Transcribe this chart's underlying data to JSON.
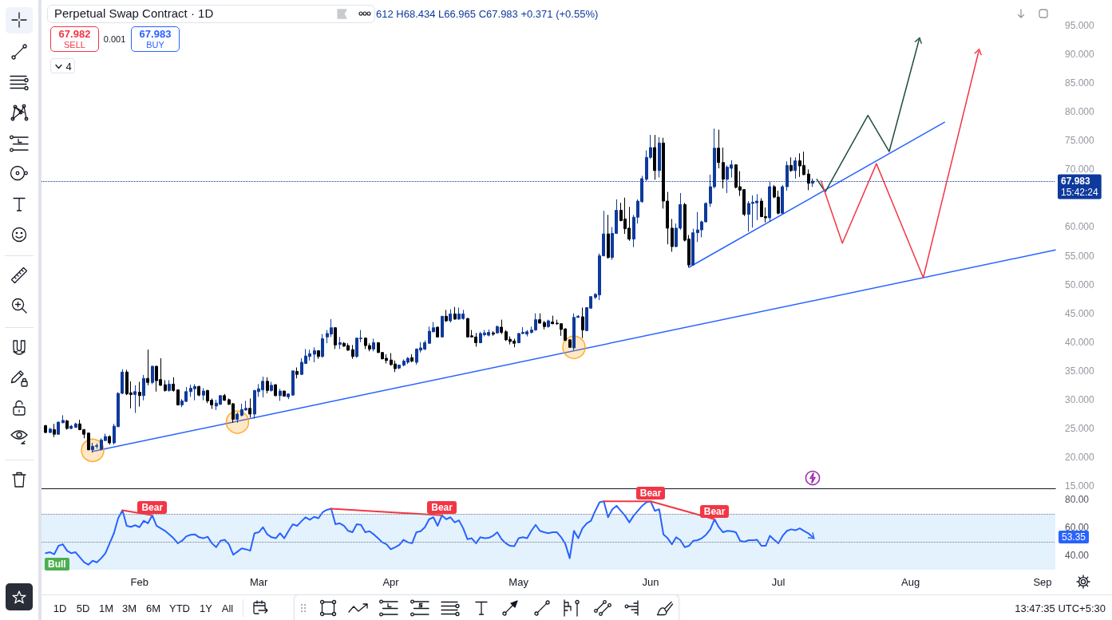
{
  "chart_data": [
    {
      "type": "candlestick",
      "title": "Perpetual Swap Contract · 1D",
      "x": [
        "--01-10",
        "--01-11",
        "--01-12",
        "--01-13",
        "--01-14",
        "--01-15",
        "--01-16",
        "--01-17",
        "--01-18",
        "--01-19",
        "--01-20",
        "--01-21",
        "--01-22",
        "--01-23",
        "--01-24",
        "--01-25",
        "--01-26",
        "--01-27",
        "--01-28",
        "--01-29",
        "--01-30",
        "--01-31",
        "--02-01",
        "--02-02",
        "--02-03",
        "--02-04",
        "--02-05",
        "--02-06",
        "--02-07",
        "--02-08",
        "--02-09",
        "--02-10",
        "--02-11",
        "--02-12",
        "--02-13",
        "--02-14",
        "--02-15",
        "--02-16",
        "--02-17",
        "--02-18",
        "--02-19",
        "--02-20",
        "--02-21",
        "--02-22",
        "--02-23",
        "--02-24",
        "--02-25",
        "--02-26",
        "--02-27",
        "--02-28",
        "--03-01",
        "--03-02",
        "--03-03",
        "--03-04",
        "--03-05",
        "--03-06",
        "--03-07",
        "--03-08",
        "--03-09",
        "--03-10",
        "--03-11",
        "--03-12",
        "--03-13",
        "--03-14",
        "--03-15",
        "--03-16",
        "--03-17",
        "--03-18",
        "--03-19",
        "--03-20",
        "--03-21",
        "--03-22",
        "--03-23",
        "--03-24",
        "--03-25",
        "--03-26",
        "--03-27",
        "--03-28",
        "--03-29",
        "--03-30",
        "--03-31",
        "--04-01",
        "--04-02",
        "--04-03",
        "--04-04",
        "--04-05",
        "--04-06",
        "--04-07",
        "--04-08",
        "--04-09",
        "--04-10",
        "--04-11",
        "--04-12",
        "--04-13",
        "--04-14",
        "--04-15",
        "--04-16",
        "--04-17",
        "--04-18",
        "--04-19",
        "--04-20",
        "--04-21",
        "--04-22",
        "--04-23",
        "--04-24",
        "--04-25",
        "--04-26",
        "--04-27",
        "--04-28",
        "--04-29",
        "--04-30",
        "--05-01",
        "--05-02",
        "--05-03",
        "--05-04",
        "--05-05",
        "--05-06",
        "--05-07",
        "--05-08",
        "--05-09",
        "--05-10",
        "--05-11",
        "--05-12",
        "--05-13",
        "--05-14",
        "--05-15",
        "--05-16",
        "--05-17",
        "--05-18",
        "--05-19",
        "--05-20",
        "--05-21",
        "--05-22",
        "--05-23",
        "--05-24",
        "--05-25",
        "--05-26",
        "--05-27",
        "--05-28",
        "--05-29",
        "--05-30",
        "--05-31",
        "--06-01",
        "--06-02",
        "--06-03",
        "--06-04",
        "--06-05",
        "--06-06",
        "--06-07",
        "--06-08",
        "--06-09",
        "--06-10",
        "--06-11",
        "--06-12",
        "--06-13",
        "--06-14",
        "--06-15",
        "--06-16",
        "--06-17",
        "--06-18",
        "--06-19",
        "--06-20",
        "--06-21",
        "--06-22",
        "--06-23",
        "--06-24",
        "--06-25",
        "--06-26",
        "--06-27",
        "--06-28",
        "--06-29",
        "--06-30",
        "--07-01",
        "--07-02",
        "--07-03",
        "--07-04",
        "--07-05",
        "--07-06",
        "--07-07",
        "--07-08",
        "--07-09"
      ],
      "ohlc": [
        [
          25.5,
          25.6,
          24.2,
          24.3
        ],
        [
          24.3,
          25.1,
          24.2,
          24.9
        ],
        [
          24.8,
          25.8,
          23.5,
          24.0
        ],
        [
          24.0,
          26.2,
          23.9,
          26.1
        ],
        [
          26.0,
          27.3,
          25.9,
          26.4
        ],
        [
          26.3,
          26.5,
          24.8,
          25.0
        ],
        [
          25.0,
          25.6,
          24.9,
          25.4
        ],
        [
          25.2,
          26.0,
          25.1,
          25.8
        ],
        [
          25.8,
          26.5,
          24.7,
          24.8
        ],
        [
          24.8,
          24.9,
          23.3,
          24.0
        ],
        [
          24.2,
          24.3,
          21.2,
          21.3
        ],
        [
          21.3,
          22.5,
          20.8,
          21.9
        ],
        [
          21.9,
          22.4,
          21.5,
          22.0
        ],
        [
          21.4,
          23.3,
          21.2,
          23.0
        ],
        [
          22.9,
          24.1,
          22.8,
          23.6
        ],
        [
          23.6,
          23.8,
          22.2,
          22.5
        ],
        [
          22.5,
          25.8,
          22.2,
          25.4
        ],
        [
          25.3,
          31.3,
          25.3,
          31.1
        ],
        [
          31.1,
          35.3,
          31.0,
          34.8
        ],
        [
          34.8,
          35.2,
          30.8,
          31.0
        ],
        [
          31.2,
          33.2,
          28.5,
          30.9
        ],
        [
          30.9,
          32.5,
          27.7,
          31.4
        ],
        [
          31.3,
          33.1,
          28.8,
          30.7
        ],
        [
          30.7,
          34.3,
          29.9,
          33.7
        ],
        [
          33.7,
          38.7,
          32.5,
          33.0
        ],
        [
          33.0,
          35.9,
          32.7,
          35.8
        ],
        [
          35.8,
          35.9,
          31.4,
          33.3
        ],
        [
          33.5,
          37.2,
          32.4,
          32.5
        ],
        [
          32.6,
          33.4,
          31.4,
          31.6
        ],
        [
          31.6,
          33.4,
          31.4,
          32.7
        ],
        [
          32.7,
          33.9,
          31.4,
          31.6
        ],
        [
          31.7,
          31.8,
          29.0,
          29.1
        ],
        [
          29.1,
          30.1,
          28.7,
          29.8
        ],
        [
          29.7,
          32.2,
          29.6,
          31.4
        ],
        [
          31.4,
          32.6,
          30.5,
          32.0
        ],
        [
          31.9,
          32.7,
          29.9,
          32.3
        ],
        [
          32.3,
          32.4,
          30.6,
          30.8
        ],
        [
          30.8,
          32.0,
          29.9,
          31.5
        ],
        [
          31.6,
          31.7,
          29.4,
          29.8
        ],
        [
          29.9,
          30.2,
          28.4,
          29.1
        ],
        [
          28.9,
          30.0,
          28.2,
          29.4
        ],
        [
          29.2,
          30.8,
          29.1,
          30.7
        ],
        [
          30.7,
          31.0,
          29.8,
          29.9
        ],
        [
          30.0,
          30.2,
          29.1,
          29.2
        ],
        [
          29.3,
          29.4,
          26.0,
          26.6
        ],
        [
          26.6,
          27.8,
          26.0,
          27.5
        ],
        [
          27.3,
          29.3,
          27.1,
          28.3
        ],
        [
          28.2,
          29.8,
          28.1,
          28.5
        ],
        [
          28.5,
          30.2,
          26.9,
          27.5
        ],
        [
          27.5,
          31.7,
          26.7,
          31.6
        ],
        [
          31.4,
          32.7,
          30.5,
          31.9
        ],
        [
          31.7,
          34.0,
          30.4,
          33.2
        ],
        [
          33.2,
          33.9,
          31.1,
          31.6
        ],
        [
          31.6,
          33.1,
          31.4,
          32.5
        ],
        [
          32.6,
          32.7,
          30.6,
          30.7
        ],
        [
          30.7,
          31.9,
          29.8,
          31.5
        ],
        [
          31.5,
          31.6,
          30.6,
          30.6
        ],
        [
          30.5,
          31.1,
          30.1,
          31.0
        ],
        [
          30.8,
          35.0,
          30.7,
          35.0
        ],
        [
          34.9,
          35.6,
          33.7,
          34.4
        ],
        [
          34.4,
          37.2,
          34.3,
          36.5
        ],
        [
          36.3,
          38.8,
          36.2,
          37.6
        ],
        [
          37.5,
          38.7,
          36.8,
          38.0
        ],
        [
          37.9,
          39.1,
          36.5,
          38.5
        ],
        [
          38.5,
          38.6,
          37.1,
          37.5
        ],
        [
          37.5,
          41.4,
          37.3,
          40.6
        ],
        [
          40.9,
          42.1,
          39.8,
          41.5
        ],
        [
          41.4,
          44.0,
          40.9,
          42.5
        ],
        [
          42.5,
          42.6,
          38.8,
          39.5
        ],
        [
          39.6,
          40.9,
          38.8,
          39.9
        ],
        [
          39.8,
          40.0,
          39.2,
          39.3
        ],
        [
          39.4,
          39.8,
          38.5,
          38.6
        ],
        [
          38.7,
          39.5,
          37.1,
          37.5
        ],
        [
          37.5,
          40.7,
          37.3,
          40.7
        ],
        [
          40.6,
          42.1,
          40.0,
          40.7
        ],
        [
          40.7,
          40.8,
          38.8,
          39.4
        ],
        [
          39.4,
          39.8,
          38.4,
          38.8
        ],
        [
          38.8,
          40.6,
          38.4,
          39.9
        ],
        [
          39.9,
          40.0,
          38.1,
          38.2
        ],
        [
          38.2,
          38.3,
          37.0,
          37.1
        ],
        [
          37.2,
          37.9,
          36.3,
          36.8
        ],
        [
          36.9,
          38.1,
          35.9,
          36.1
        ],
        [
          36.2,
          36.8,
          34.8,
          35.4
        ],
        [
          35.5,
          36.1,
          35.3,
          36.0
        ],
        [
          36.0,
          37.0,
          35.8,
          36.7
        ],
        [
          36.5,
          37.4,
          36.2,
          37.2
        ],
        [
          37.3,
          37.9,
          36.5,
          36.7
        ],
        [
          36.5,
          38.9,
          36.1,
          38.8
        ],
        [
          38.6,
          40.0,
          38.2,
          39.0
        ],
        [
          38.8,
          40.3,
          38.6,
          39.9
        ],
        [
          39.8,
          42.7,
          39.7,
          41.9
        ],
        [
          41.8,
          43.5,
          41.7,
          42.5
        ],
        [
          42.6,
          42.7,
          40.8,
          40.9
        ],
        [
          40.9,
          44.5,
          40.8,
          44.5
        ],
        [
          44.5,
          45.6,
          43.5,
          43.7
        ],
        [
          43.7,
          45.7,
          43.4,
          44.9
        ],
        [
          44.9,
          46.1,
          43.9,
          44.0
        ],
        [
          44.0,
          46.0,
          43.9,
          44.9
        ],
        [
          44.1,
          45.6,
          43.9,
          44.9
        ],
        [
          44.1,
          44.2,
          40.8,
          40.9
        ],
        [
          41.1,
          42.1,
          40.8,
          40.9
        ],
        [
          40.9,
          41.6,
          39.2,
          39.9
        ],
        [
          39.9,
          41.8,
          39.8,
          41.5
        ],
        [
          41.3,
          42.1,
          41.0,
          41.6
        ],
        [
          41.2,
          42.2,
          41.0,
          41.7
        ],
        [
          41.6,
          41.9,
          41.1,
          41.4
        ],
        [
          41.6,
          42.9,
          41.5,
          42.7
        ],
        [
          42.6,
          43.9,
          41.4,
          41.7
        ],
        [
          41.8,
          42.1,
          40.2,
          40.4
        ],
        [
          40.5,
          41.0,
          39.6,
          40.1
        ],
        [
          40.2,
          40.6,
          39.1,
          39.8
        ],
        [
          39.9,
          41.6,
          39.8,
          41.5
        ],
        [
          41.5,
          42.6,
          41.4,
          41.7
        ],
        [
          41.4,
          42.1,
          41.0,
          41.8
        ],
        [
          41.7,
          42.7,
          41.5,
          42.1
        ],
        [
          42.1,
          45.0,
          42.0,
          43.9
        ],
        [
          43.9,
          45.0,
          43.2,
          43.3
        ],
        [
          43.4,
          43.7,
          42.2,
          42.7
        ],
        [
          42.7,
          43.9,
          42.5,
          43.7
        ],
        [
          43.5,
          44.6,
          43.1,
          43.2
        ],
        [
          43.3,
          43.9,
          43.0,
          43.2
        ],
        [
          43.2,
          43.3,
          41.1,
          42.2
        ],
        [
          42.3,
          42.4,
          40.2,
          40.3
        ],
        [
          40.4,
          40.5,
          39.0,
          39.1
        ],
        [
          39.0,
          45.0,
          38.6,
          44.3
        ],
        [
          44.3,
          44.7,
          44.2,
          44.5
        ],
        [
          44.4,
          46.0,
          40.7,
          42.1
        ],
        [
          42.0,
          46.0,
          41.9,
          46.0
        ],
        [
          45.9,
          48.0,
          45.8,
          47.9
        ],
        [
          47.8,
          48.5,
          47.5,
          48.3
        ],
        [
          48.2,
          55.4,
          47.3,
          55.0
        ],
        [
          55.0,
          62.8,
          54.9,
          58.8
        ],
        [
          58.8,
          62.1,
          54.5,
          54.7
        ],
        [
          54.7,
          60.0,
          54.3,
          58.9
        ],
        [
          58.9,
          64.8,
          58.8,
          62.9
        ],
        [
          62.9,
          64.2,
          61.0,
          61.1
        ],
        [
          61.4,
          65.1,
          58.8,
          59.7
        ],
        [
          59.8,
          63.5,
          57.6,
          57.9
        ],
        [
          57.9,
          62.1,
          56.5,
          61.7
        ],
        [
          61.7,
          64.8,
          60.6,
          64.5
        ],
        [
          64.4,
          68.9,
          64.2,
          68.4
        ],
        [
          68.3,
          73.3,
          68.0,
          72.1
        ],
        [
          72.1,
          76.0,
          71.8,
          73.8
        ],
        [
          73.8,
          76.0,
          68.2,
          69.8
        ],
        [
          69.8,
          75.6,
          68.6,
          74.6
        ],
        [
          74.6,
          75.5,
          63.2,
          64.5
        ],
        [
          64.5,
          66.1,
          57.0,
          59.8
        ],
        [
          59.8,
          61.4,
          55.7,
          56.6
        ],
        [
          56.6,
          60.6,
          56.5,
          59.8
        ],
        [
          59.8,
          65.9,
          59.5,
          63.9
        ],
        [
          63.9,
          64.2,
          57.5,
          57.7
        ],
        [
          57.9,
          58.6,
          53.0,
          53.4
        ],
        [
          53.4,
          59.7,
          53.3,
          59.0
        ],
        [
          59.0,
          62.6,
          57.4,
          59.5
        ],
        [
          59.5,
          61.1,
          58.2,
          60.9
        ],
        [
          60.9,
          64.3,
          60.8,
          64.1
        ],
        [
          64.1,
          69.1,
          63.5,
          67.0
        ],
        [
          67.0,
          77.1,
          66.7,
          73.7
        ],
        [
          73.7,
          76.9,
          70.2,
          71.2
        ],
        [
          71.2,
          73.8,
          66.7,
          68.3
        ],
        [
          68.3,
          70.7,
          65.9,
          70.4
        ],
        [
          70.2,
          71.6,
          68.6,
          70.8
        ],
        [
          70.8,
          70.9,
          66.7,
          66.9
        ],
        [
          67.0,
          69.7,
          65.4,
          66.4
        ],
        [
          66.5,
          66.6,
          61.9,
          62.2
        ],
        [
          62.2,
          64.5,
          59.2,
          64.1
        ],
        [
          64.1,
          65.5,
          59.9,
          64.3
        ],
        [
          64.2,
          65.7,
          61.2,
          64.5
        ],
        [
          64.5,
          65.0,
          61.7,
          61.8
        ],
        [
          61.8,
          63.4,
          60.8,
          61.6
        ],
        [
          61.6,
          68.0,
          60.9,
          67.0
        ],
        [
          67.0,
          67.3,
          65.0,
          65.2
        ],
        [
          65.2,
          66.3,
          62.2,
          62.4
        ],
        [
          62.4,
          67.3,
          62.3,
          67.0
        ],
        [
          67.0,
          71.4,
          66.3,
          70.7
        ],
        [
          70.7,
          72.1,
          69.6,
          69.8
        ],
        [
          69.8,
          72.1,
          68.4,
          71.5
        ],
        [
          71.5,
          72.8,
          68.7,
          70.6
        ],
        [
          70.7,
          73.1,
          69.0,
          69.1
        ],
        [
          69.2,
          70.0,
          66.4,
          67.6
        ],
        [
          67.612,
          68.434,
          66.965,
          67.983
        ]
      ],
      "colors": [
        "#000000",
        "#0e3a9c",
        "#000000",
        "#0e3a9c",
        "#0e3a9c",
        "#000000",
        "#0e3a9c",
        "#0e3a9c",
        "#000000",
        "#000000",
        "#000000",
        "#0e3a9c",
        "#0e3a9c",
        "#0e3a9c",
        "#0e3a9c",
        "#000000",
        "#0e3a9c",
        "#0e3a9c",
        "#0e3a9c",
        "#000000",
        "#000000",
        "#0e3a9c",
        "#000000",
        "#0e3a9c",
        "#000000",
        "#0e3a9c",
        "#000000",
        "#000000",
        "#000000",
        "#0e3a9c",
        "#000000",
        "#000000",
        "#0e3a9c",
        "#0e3a9c",
        "#0e3a9c",
        "#0e3a9c",
        "#000000",
        "#0e3a9c",
        "#000000",
        "#000000",
        "#0e3a9c",
        "#0e3a9c",
        "#000000",
        "#000000",
        "#000000",
        "#0e3a9c",
        "#0e3a9c",
        "#0e3a9c",
        "#000000",
        "#0e3a9c",
        "#0e3a9c",
        "#0e3a9c",
        "#000000",
        "#0e3a9c",
        "#000000",
        "#0e3a9c",
        "#000000",
        "#0e3a9c",
        "#0e3a9c",
        "#000000",
        "#0e3a9c",
        "#0e3a9c",
        "#0e3a9c",
        "#0e3a9c",
        "#000000",
        "#0e3a9c",
        "#0e3a9c",
        "#0e3a9c",
        "#000000",
        "#0e3a9c",
        "#000000",
        "#000000",
        "#000000",
        "#0e3a9c",
        "#0e3a9c",
        "#000000",
        "#000000",
        "#0e3a9c",
        "#000000",
        "#000000",
        "#000000",
        "#000000",
        "#000000",
        "#0e3a9c",
        "#0e3a9c",
        "#0e3a9c",
        "#000000",
        "#0e3a9c",
        "#0e3a9c",
        "#0e3a9c",
        "#0e3a9c",
        "#0e3a9c",
        "#000000",
        "#0e3a9c",
        "#000000",
        "#0e3a9c",
        "#000000",
        "#0e3a9c",
        "#0e3a9c",
        "#000000",
        "#000000",
        "#000000",
        "#0e3a9c",
        "#0e3a9c",
        "#0e3a9c",
        "#000000",
        "#0e3a9c",
        "#000000",
        "#000000",
        "#000000",
        "#000000",
        "#0e3a9c",
        "#0e3a9c",
        "#0e3a9c",
        "#0e3a9c",
        "#0e3a9c",
        "#000000",
        "#000000",
        "#0e3a9c",
        "#000000",
        "#000000",
        "#000000",
        "#000000",
        "#000000",
        "#0e3a9c",
        "#0e3a9c",
        "#000000",
        "#0e3a9c",
        "#0e3a9c",
        "#0e3a9c",
        "#0e3a9c",
        "#0e3a9c",
        "#000000",
        "#0e3a9c",
        "#0e3a9c",
        "#000000",
        "#000000",
        "#000000",
        "#0e3a9c",
        "#0e3a9c",
        "#0e3a9c",
        "#0e3a9c",
        "#0e3a9c",
        "#000000",
        "#0e3a9c",
        "#000000",
        "#000000",
        "#000000",
        "#0e3a9c",
        "#0e3a9c",
        "#000000",
        "#000000",
        "#0e3a9c",
        "#0e3a9c",
        "#0e3a9c",
        "#0e3a9c",
        "#0e3a9c",
        "#0e3a9c",
        "#000000",
        "#000000",
        "#0e3a9c",
        "#0e3a9c",
        "#000000",
        "#000000",
        "#000000",
        "#0e3a9c",
        "#0e3a9c",
        "#0e3a9c",
        "#000000",
        "#000000",
        "#0e3a9c",
        "#000000",
        "#000000",
        "#0e3a9c",
        "#0e3a9c",
        "#000000",
        "#0e3a9c",
        "#000000",
        "#000000",
        "#000000",
        "#0e3a9c"
      ],
      "series": [
        {
          "type": "line",
          "color": "#2962ff",
          "x": [
            "--01-21",
            "--09-04"
          ],
          "values": [
            21.0,
            56.0
          ]
        },
        {
          "type": "line",
          "color": "#2962ff",
          "x": [
            "--06-10",
            "--08-09"
          ],
          "values": [
            53.0,
            78.2
          ]
        },
        {
          "type": "line",
          "color": "#1f4e3d",
          "x": [
            "--07-10",
            "--07-12",
            "--07-22",
            "--07-27",
            "--08-03"
          ],
          "values": [
            68.3,
            66.1,
            79.4,
            73.1,
            92.5
          ]
        },
        {
          "type": "line",
          "color": "#f23645",
          "x": [
            "--07-11",
            "--07-16",
            "--07-24",
            "--08-04",
            "--08-17"
          ],
          "values": [
            68.0,
            57.2,
            71.0,
            51.2,
            90.5
          ]
        },
        {
          "type": "scatter",
          "color": "#ff9800",
          "marker": "circle",
          "x": [
            "--01-21",
            "--02-24",
            "--05-14"
          ],
          "values": [
            21.2,
            26.1,
            39.1
          ]
        }
      ],
      "xlim": [
        "--01-09",
        "--09-04"
      ],
      "ylim": [
        14.6,
        95
      ],
      "yticks": [
        {
          "value": 15,
          "label": "15.000"
        },
        {
          "value": 20,
          "label": "20.000"
        },
        {
          "value": 25,
          "label": "25.000"
        },
        {
          "value": 30,
          "label": "30.000"
        },
        {
          "value": 35,
          "label": "35.000"
        },
        {
          "value": 40,
          "label": "40.000"
        },
        {
          "value": 45,
          "label": "45.000"
        },
        {
          "value": 50,
          "label": "50.000"
        },
        {
          "value": 55,
          "label": "55.000"
        },
        {
          "value": 60,
          "label": "60.000"
        },
        {
          "value": 70,
          "label": "70.000"
        },
        {
          "value": 75,
          "label": "75.000"
        },
        {
          "value": 80,
          "label": "80.000"
        },
        {
          "value": 85,
          "label": "85.000"
        },
        {
          "value": 90,
          "label": "90.000"
        },
        {
          "value": 95,
          "label": "95.000"
        }
      ],
      "tick_labels": "y",
      "grid": false,
      "marker": "none",
      "ref_lines": [
        {
          "axis": "y",
          "value": 67.983,
          "label": "67.983",
          "color": "#0e3a9c",
          "line_style": "dotted"
        }
      ],
      "annotations": [
        "612 H68.434 L66.965 C67.983 +0.371 (+0.55%)",
        "67.982",
        "SELL",
        "0.001",
        "67.983",
        "BUY",
        "4",
        "15:42:24"
      ]
    },
    {
      "type": "line",
      "x": [
        "--01-10",
        "--01-11",
        "--01-12",
        "--01-13",
        "--01-14",
        "--01-15",
        "--01-16",
        "--01-17",
        "--01-18",
        "--01-19",
        "--01-20",
        "--01-21",
        "--01-22",
        "--01-23",
        "--01-24",
        "--01-25",
        "--01-26",
        "--01-27",
        "--01-28",
        "--01-29",
        "--01-30",
        "--01-31",
        "--02-01",
        "--02-02",
        "--02-03",
        "--02-04",
        "--02-05",
        "--02-06",
        "--02-07",
        "--02-08",
        "--02-09",
        "--02-10",
        "--02-11",
        "--02-12",
        "--02-13",
        "--02-14",
        "--02-15",
        "--02-16",
        "--02-17",
        "--02-18",
        "--02-19",
        "--02-20",
        "--02-21",
        "--02-22",
        "--02-23",
        "--02-24",
        "--02-25",
        "--02-26",
        "--02-27",
        "--02-28",
        "--03-01",
        "--03-02",
        "--03-03",
        "--03-04",
        "--03-05",
        "--03-06",
        "--03-07",
        "--03-08",
        "--03-09",
        "--03-10",
        "--03-11",
        "--03-12",
        "--03-13",
        "--03-14",
        "--03-15",
        "--03-16",
        "--03-17",
        "--03-18",
        "--03-19",
        "--03-20",
        "--03-21",
        "--03-22",
        "--03-23",
        "--03-24",
        "--03-25",
        "--03-26",
        "--03-27",
        "--03-28",
        "--03-29",
        "--03-30",
        "--03-31",
        "--04-01",
        "--04-02",
        "--04-03",
        "--04-04",
        "--04-05",
        "--04-06",
        "--04-07",
        "--04-08",
        "--04-09",
        "--04-10",
        "--04-11",
        "--04-12",
        "--04-13",
        "--04-14",
        "--04-15",
        "--04-16",
        "--04-17",
        "--04-18",
        "--04-19",
        "--04-20",
        "--04-21",
        "--04-22",
        "--04-23",
        "--04-24",
        "--04-25",
        "--04-26",
        "--04-27",
        "--04-28",
        "--04-29",
        "--04-30",
        "--05-01",
        "--05-02",
        "--05-03",
        "--05-04",
        "--05-05",
        "--05-06",
        "--05-07",
        "--05-08",
        "--05-09",
        "--05-10",
        "--05-11",
        "--05-12",
        "--05-13",
        "--05-14",
        "--05-15",
        "--05-16",
        "--05-17",
        "--05-18",
        "--05-19",
        "--05-20",
        "--05-21",
        "--05-22",
        "--05-23",
        "--05-24",
        "--05-25",
        "--05-26",
        "--05-27",
        "--05-28",
        "--05-29",
        "--05-30",
        "--05-31",
        "--06-01",
        "--06-02",
        "--06-03",
        "--06-04",
        "--06-05",
        "--06-06",
        "--06-07",
        "--06-08",
        "--06-09",
        "--06-10",
        "--06-11",
        "--06-12",
        "--06-13",
        "--06-14",
        "--06-15",
        "--06-16",
        "--06-17",
        "--06-18",
        "--06-19",
        "--06-20",
        "--06-21",
        "--06-22",
        "--06-23",
        "--06-24",
        "--06-25",
        "--06-26",
        "--06-27",
        "--06-28",
        "--06-29",
        "--06-30",
        "--07-01",
        "--07-02",
        "--07-03",
        "--07-04",
        "--07-05",
        "--07-06",
        "--07-07",
        "--07-08",
        "--07-09"
      ],
      "series": [
        {
          "color": "#2962ff",
          "values": [
            41.8,
            42.5,
            41.1,
            47.1,
            48.2,
            43.6,
            41.8,
            42.5,
            38.9,
            35.3,
            33.6,
            36.4,
            35.3,
            38.2,
            41.8,
            48.9,
            56.1,
            66.8,
            72.5,
            61.4,
            60.7,
            61.8,
            60.4,
            65.0,
            63.2,
            68.9,
            61.4,
            59.6,
            57.8,
            55.3,
            52.5,
            48.9,
            50.7,
            53.9,
            55.0,
            55.3,
            53.2,
            52.5,
            53.6,
            48.9,
            46.1,
            50.7,
            51.4,
            48.2,
            40.7,
            42.9,
            45.3,
            44.6,
            43.6,
            56.1,
            56.8,
            60.4,
            55.3,
            53.2,
            52.5,
            56.1,
            52.5,
            57.8,
            62.5,
            61.4,
            64.6,
            67.5,
            65.7,
            67.8,
            66.8,
            71.1,
            72.8,
            73.6,
            62.5,
            63.2,
            61.4,
            57.8,
            56.8,
            62.5,
            62.1,
            56.8,
            57.5,
            55.3,
            52.5,
            49.6,
            48.2,
            44.6,
            46.1,
            47.8,
            51.4,
            49.6,
            48.9,
            56.8,
            57.5,
            60.4,
            66.1,
            67.5,
            61.4,
            68.9,
            66.1,
            67.5,
            63.9,
            65.3,
            59.6,
            51.8,
            52.5,
            48.9,
            53.2,
            52.5,
            52.8,
            54.3,
            56.8,
            51.8,
            48.9,
            47.1,
            46.8,
            52.5,
            53.2,
            52.5,
            57.8,
            62.1,
            57.8,
            56.8,
            56.1,
            56.8,
            56.8,
            53.2,
            48.2,
            38.2,
            57.8,
            52.5,
            59.6,
            63.2,
            65.0,
            72.1,
            78.2,
            78.9,
            67.5,
            73.2,
            75.7,
            72.1,
            68.6,
            63.9,
            68.6,
            72.1,
            75.7,
            78.2,
            78.9,
            72.1,
            73.2,
            55.3,
            52.5,
            48.2,
            53.2,
            51.1,
            46.1,
            47.1,
            50.7,
            51.1,
            52.5,
            55.0,
            58.9,
            66.1,
            60.4,
            56.8,
            57.8,
            57.5,
            56.8,
            50.7,
            50.0,
            51.1,
            51.1,
            51.4,
            47.1,
            47.1,
            54.3,
            51.4,
            48.9,
            54.3,
            57.8,
            58.9,
            58.2,
            59.6,
            57.8,
            56.1,
            53.35
          ]
        },
        {
          "color": "#f23645",
          "x": [
            "--01-28",
            "--02-04"
          ],
          "values": [
            72.5,
            68.9
          ]
        },
        {
          "color": "#f23645",
          "x": [
            "--03-18",
            "--04-13"
          ],
          "values": [
            73.6,
            68.9
          ]
        },
        {
          "color": "#f23645",
          "x": [
            "--05-21",
            "--06-01",
            "--06-16"
          ],
          "values": [
            78.9,
            78.9,
            66.1
          ]
        }
      ],
      "xlim": [
        "--01-09",
        "--09-04"
      ],
      "xticks": [
        {
          "value": "--02-01",
          "label": "Feb"
        },
        {
          "value": "--03-01",
          "label": "Mar"
        },
        {
          "value": "--04-01",
          "label": "Apr"
        },
        {
          "value": "--05-01",
          "label": "May"
        },
        {
          "value": "--06-01",
          "label": "Jun"
        },
        {
          "value": "--07-01",
          "label": "Jul"
        },
        {
          "value": "--08-01",
          "label": "Aug"
        },
        {
          "value": "--09-01",
          "label": "Sep"
        }
      ],
      "ylim": [
        30,
        88.2
      ],
      "yticks": [
        {
          "value": 40,
          "label": "40.00"
        },
        {
          "value": 60,
          "label": "60.00"
        },
        {
          "value": 80,
          "label": "80.00"
        }
      ],
      "grid": false,
      "marker": "none",
      "bands": [
        {
          "axis": "y",
          "from": 30,
          "to": 70,
          "color": "#e3f2fd"
        }
      ],
      "ref_lines": [
        {
          "axis": "y",
          "value": 70,
          "color": "#787b86",
          "line_style": "dotted"
        },
        {
          "axis": "y",
          "value": 50,
          "color": "#787b86",
          "line_style": "dotted"
        }
      ],
      "annotations": [
        {
          "text": "Bear",
          "x": "--02-04",
          "y": 68.9
        },
        {
          "text": "Bear",
          "x": "--04-13",
          "y": 68.9
        },
        {
          "text": "Bear",
          "x": "--06-01",
          "y": 78.9
        },
        {
          "text": "Bear",
          "x": "--06-16",
          "y": 66.1
        },
        "Bull",
        "53.35",
        "1D",
        "5D",
        "1M",
        "3M",
        "6M",
        "YTD",
        "1Y",
        "All",
        "13:47:35 UTC+5:30"
      ]
    }
  ]
}
